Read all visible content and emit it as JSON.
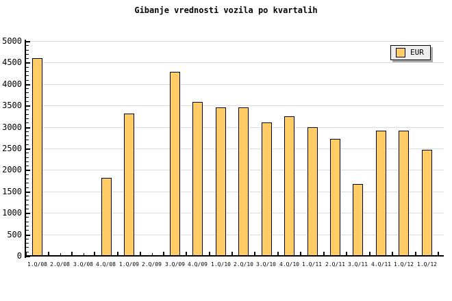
{
  "title": "Gibanje vrednosti vozila po kvartalih",
  "legend": {
    "label": "EUR"
  },
  "colors": {
    "background": "#FFFFFF",
    "text": "#000000",
    "bar_fill": "#FFCC66",
    "bar_border": "#000000",
    "gridline": "#DCDCDC",
    "axis": "#000000",
    "legend_bg": "#EFEFEF",
    "legend_border": "#000000",
    "legend_shadow": "#A9A9A9"
  },
  "chart_data": {
    "type": "bar",
    "title": "Gibanje vrednosti vozila po kvartalih",
    "xlabel": "",
    "ylabel": "",
    "categories": [
      "1.Q/08",
      "2.Q/08",
      "3.Q/08",
      "4.Q/08",
      "1.Q/09",
      "2.Q/09",
      "3.Q/09",
      "4.Q/09",
      "1.Q/10",
      "2.Q/10",
      "3.Q/10",
      "4.Q/10",
      "1.Q/11",
      "2.Q/11",
      "3.Q/11",
      "4.Q/11",
      "1.Q/12",
      "1.Q/12"
    ],
    "series": [
      {
        "name": "EUR",
        "values": [
          4600,
          null,
          null,
          1810,
          3310,
          null,
          4280,
          3580,
          3460,
          3460,
          3100,
          3250,
          3000,
          2720,
          1670,
          2910,
          2920,
          2470
        ]
      }
    ],
    "ylim": [
      0,
      5000
    ],
    "ytick_step": 500,
    "y_minor_tick_step": 100,
    "ytick_labels": [
      "0",
      "500",
      "1000",
      "1500",
      "2000",
      "2500",
      "3000",
      "3500",
      "4000",
      "4500",
      "5000"
    ],
    "grid": true,
    "legend_position": "top-right"
  }
}
